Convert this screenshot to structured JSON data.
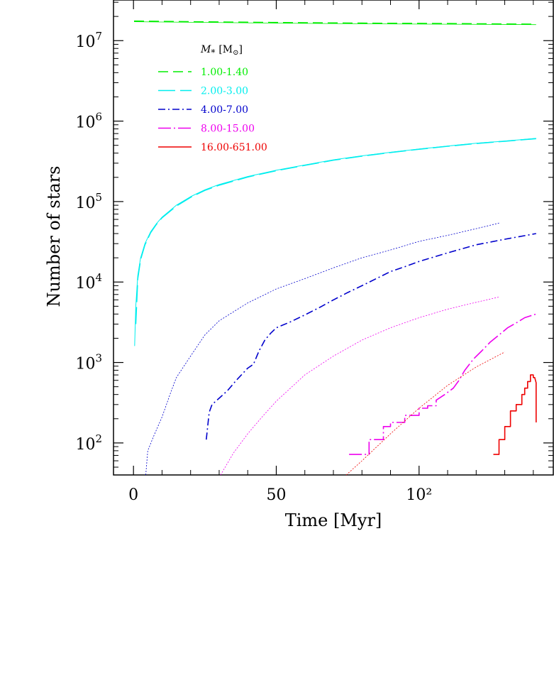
{
  "chart_data": {
    "type": "line",
    "xlabel": "Time [Myr]",
    "ylabel": "Number of stars",
    "x_scale": "linear",
    "y_scale": "log",
    "xlim": [
      -7,
      147
    ],
    "ylim": [
      40,
      32000000
    ],
    "x_ticks": [
      {
        "value": 0,
        "label": "0"
      },
      {
        "value": 50,
        "label": "50"
      },
      {
        "value": 100,
        "label": "10²"
      }
    ],
    "y_ticks": [
      {
        "value": 100,
        "mant": "10",
        "exp": "2"
      },
      {
        "value": 1000,
        "mant": "10",
        "exp": "3"
      },
      {
        "value": 10000,
        "mant": "10",
        "exp": "4"
      },
      {
        "value": 100000,
        "mant": "10",
        "exp": "5"
      },
      {
        "value": 1000000,
        "mant": "10",
        "exp": "6"
      },
      {
        "value": 10000000,
        "mant": "10",
        "exp": "7"
      }
    ],
    "legend": {
      "title_main": "M",
      "title_sub": "*",
      "title_unit": "[M",
      "title_unit_sub": "⊙",
      "title_unit_close": "]",
      "placement": "top-left",
      "entries": [
        {
          "label": "1.00-1.40",
          "color": "#00ee00",
          "dash": "14,7"
        },
        {
          "label": "2.00-3.00",
          "color": "#00eeee",
          "dash": "24,7"
        },
        {
          "label": "4.00-7.00",
          "color": "#0000cc",
          "dash": "10,4,2,4"
        },
        {
          "label": "8.00-15.00",
          "color": "#ee00ee",
          "dash": "18,4,2,4"
        },
        {
          "label": "16.00-651.00",
          "color": "#ee0000",
          "dash": ""
        }
      ]
    },
    "series": [
      {
        "color": "#00ee00",
        "dash": "14,7",
        "width": 1.6,
        "points": [
          [
            0.2,
            17500000
          ],
          [
            20,
            17200000
          ],
          [
            50,
            16800000
          ],
          [
            80,
            16500000
          ],
          [
            110,
            16300000
          ],
          [
            141,
            16000000
          ]
        ]
      },
      {
        "color": "#00ee00",
        "dash": "",
        "width": 0.8,
        "points": [
          [
            0.2,
            17200000
          ],
          [
            20,
            16900000
          ],
          [
            50,
            16500000
          ],
          [
            80,
            16200000
          ],
          [
            110,
            16000000
          ],
          [
            141,
            15800000
          ]
        ]
      },
      {
        "color": "#00eeee",
        "dash": "",
        "width": 1.0,
        "points": [
          [
            0.4,
            1600
          ],
          [
            0.8,
            5000
          ],
          [
            1.5,
            12000
          ],
          [
            2.5,
            20000
          ],
          [
            4,
            30000
          ],
          [
            6,
            42000
          ],
          [
            8,
            53000
          ],
          [
            10,
            64000
          ],
          [
            15,
            90000
          ],
          [
            20,
            115000
          ],
          [
            25,
            140000
          ],
          [
            30,
            163000
          ],
          [
            40,
            205000
          ],
          [
            50,
            245000
          ],
          [
            60,
            285000
          ],
          [
            70,
            330000
          ],
          [
            80,
            370000
          ],
          [
            90,
            410000
          ],
          [
            100,
            450000
          ],
          [
            110,
            490000
          ],
          [
            120,
            530000
          ],
          [
            130,
            565000
          ],
          [
            141,
            610000
          ]
        ]
      },
      {
        "color": "#00eeee",
        "dash": "24,7",
        "width": 1.6,
        "points": [
          [
            0.8,
            3000
          ],
          [
            1.5,
            11000
          ],
          [
            2.5,
            19000
          ],
          [
            4,
            29000
          ],
          [
            6,
            41000
          ],
          [
            8,
            52000
          ],
          [
            10,
            63000
          ],
          [
            15,
            88000
          ],
          [
            20,
            113000
          ],
          [
            25,
            138000
          ],
          [
            30,
            160000
          ],
          [
            40,
            202000
          ],
          [
            50,
            242000
          ],
          [
            60,
            282000
          ],
          [
            70,
            327000
          ],
          [
            80,
            367000
          ],
          [
            90,
            407000
          ],
          [
            100,
            447000
          ],
          [
            110,
            487000
          ],
          [
            120,
            527000
          ],
          [
            130,
            562000
          ],
          [
            141,
            605000
          ]
        ]
      },
      {
        "color": "#0000cc",
        "dash": "2,2",
        "width": 0.8,
        "points": [
          [
            4.3,
            40
          ],
          [
            5,
            80
          ],
          [
            7,
            120
          ],
          [
            10,
            210
          ],
          [
            13,
            420
          ],
          [
            15,
            650
          ],
          [
            20,
            1200
          ],
          [
            25,
            2200
          ],
          [
            30,
            3300
          ],
          [
            40,
            5500
          ],
          [
            50,
            8200
          ],
          [
            60,
            11000
          ],
          [
            70,
            15000
          ],
          [
            80,
            20000
          ],
          [
            90,
            25000
          ],
          [
            100,
            32000
          ],
          [
            110,
            38000
          ],
          [
            120,
            46000
          ],
          [
            128,
            54000
          ]
        ]
      },
      {
        "color": "#0000cc",
        "dash": "10,4,2,4",
        "width": 1.6,
        "points": [
          [
            25.5,
            110
          ],
          [
            26.5,
            240
          ],
          [
            27.5,
            300
          ],
          [
            30,
            360
          ],
          [
            33,
            450
          ],
          [
            36,
            600
          ],
          [
            40,
            850
          ],
          [
            42,
            950
          ],
          [
            44,
            1400
          ],
          [
            46,
            1900
          ],
          [
            48,
            2300
          ],
          [
            50,
            2700
          ],
          [
            55,
            3200
          ],
          [
            60,
            3900
          ],
          [
            65,
            4800
          ],
          [
            70,
            6000
          ],
          [
            75,
            7400
          ],
          [
            80,
            9000
          ],
          [
            85,
            11000
          ],
          [
            90,
            13500
          ],
          [
            95,
            15500
          ],
          [
            100,
            18000
          ],
          [
            110,
            23000
          ],
          [
            120,
            29000
          ],
          [
            130,
            34000
          ],
          [
            141,
            40000
          ]
        ]
      },
      {
        "color": "#ee00ee",
        "dash": "2,2",
        "width": 0.8,
        "points": [
          [
            30.5,
            40
          ],
          [
            35,
            75
          ],
          [
            40,
            130
          ],
          [
            45,
            210
          ],
          [
            50,
            330
          ],
          [
            60,
            700
          ],
          [
            70,
            1200
          ],
          [
            80,
            1900
          ],
          [
            90,
            2700
          ],
          [
            100,
            3600
          ],
          [
            110,
            4600
          ],
          [
            120,
            5600
          ],
          [
            128,
            6500
          ]
        ]
      },
      {
        "color": "#ee00ee",
        "dash": "18,4,2,4",
        "width": 1.6,
        "points": [
          [
            75.5,
            72
          ],
          [
            82.5,
            72
          ],
          [
            82.5,
            110
          ],
          [
            87.5,
            110
          ],
          [
            87.5,
            160
          ],
          [
            90,
            160
          ],
          [
            90,
            180
          ],
          [
            95,
            180
          ],
          [
            95,
            220
          ],
          [
            100,
            220
          ],
          [
            100,
            270
          ],
          [
            103,
            270
          ],
          [
            103,
            290
          ],
          [
            106,
            290
          ],
          [
            106,
            340
          ],
          [
            109,
            400
          ],
          [
            112,
            480
          ],
          [
            114,
            600
          ],
          [
            116,
            800
          ],
          [
            119,
            1100
          ],
          [
            122,
            1400
          ],
          [
            125,
            1800
          ],
          [
            128,
            2200
          ],
          [
            131,
            2700
          ],
          [
            134,
            3100
          ],
          [
            137,
            3600
          ],
          [
            139,
            3800
          ],
          [
            141,
            4000
          ]
        ]
      },
      {
        "color": "#ee0000",
        "dash": "2,2",
        "width": 0.8,
        "points": [
          [
            74.5,
            40
          ],
          [
            80,
            60
          ],
          [
            90,
            130
          ],
          [
            100,
            270
          ],
          [
            110,
            520
          ],
          [
            120,
            880
          ],
          [
            130,
            1350
          ]
        ]
      },
      {
        "color": "#ee0000",
        "dash": "",
        "width": 1.6,
        "points": [
          [
            126,
            72
          ],
          [
            128,
            72
          ],
          [
            128,
            110
          ],
          [
            130,
            110
          ],
          [
            130,
            160
          ],
          [
            132,
            160
          ],
          [
            132,
            250
          ],
          [
            134,
            250
          ],
          [
            134,
            300
          ],
          [
            136,
            300
          ],
          [
            136,
            400
          ],
          [
            137,
            400
          ],
          [
            137,
            480
          ],
          [
            138,
            480
          ],
          [
            138,
            580
          ],
          [
            139,
            580
          ],
          [
            139,
            700
          ],
          [
            140,
            700
          ],
          [
            140,
            650
          ],
          [
            140.5,
            650
          ],
          [
            141,
            560
          ],
          [
            141,
            180
          ]
        ]
      }
    ]
  }
}
